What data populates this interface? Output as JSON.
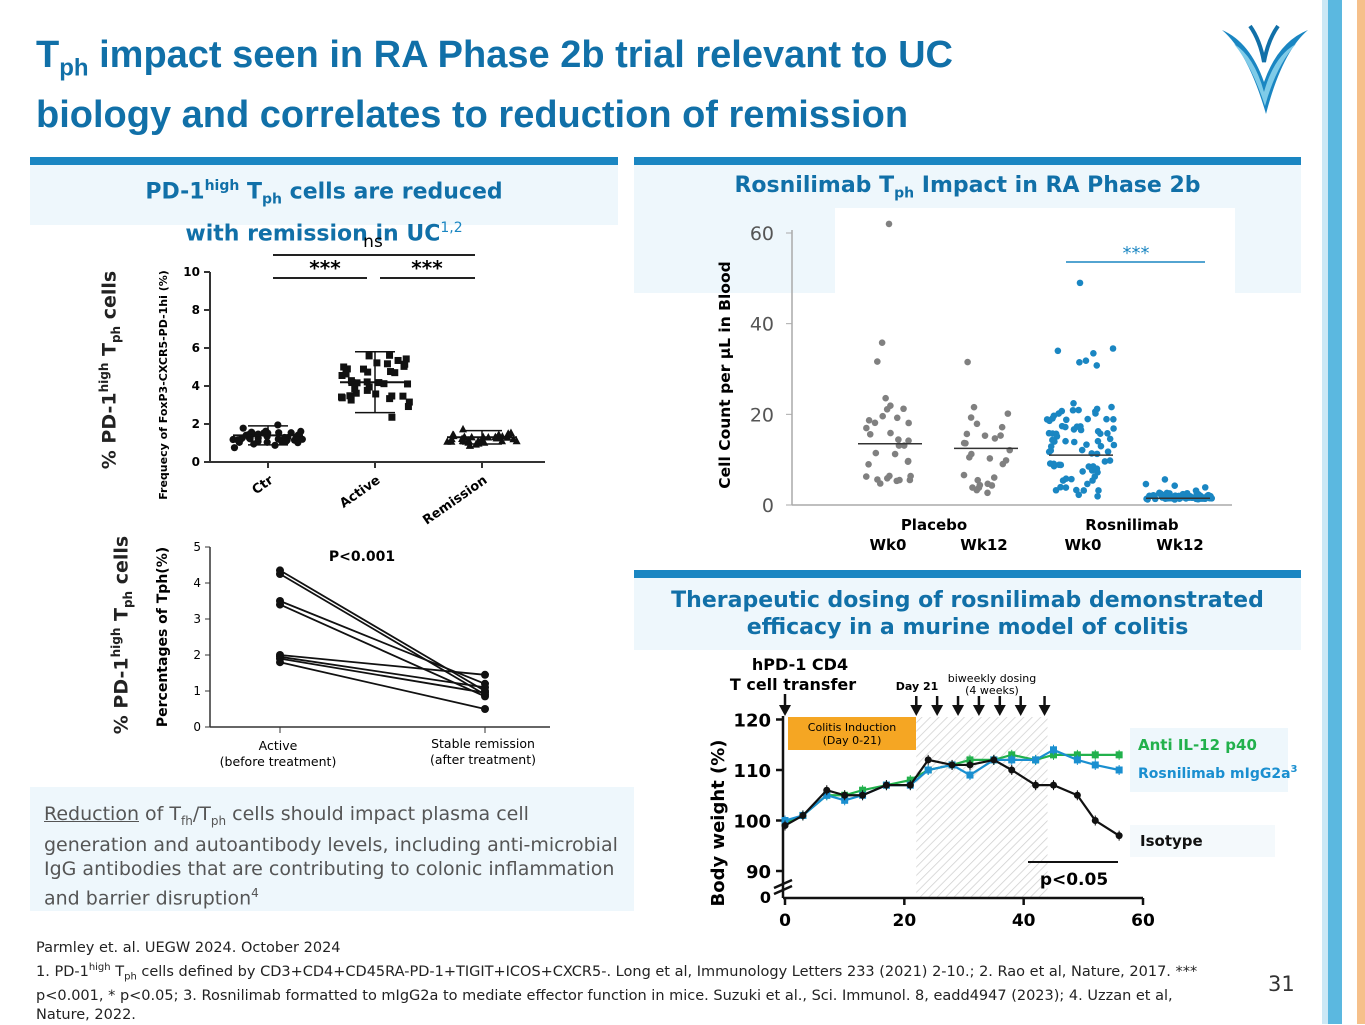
{
  "title": {
    "tph_T": "T",
    "tph_sub": "ph",
    "line1_rest": " impact seen in RA Phase 2b trial relevant to UC",
    "line2": "biology and correlates to reduction of remission"
  },
  "left_panel": {
    "title_line1_a": "PD-1",
    "title_line1_sup": "high",
    "title_line1_b": " T",
    "title_line1_sub": "ph",
    "title_line1_c": " cells are reduced",
    "title_line2": "with remission in UC",
    "title_line2_sup": "1,2",
    "ylabel_a": "% PD-1",
    "ylabel_sup": "high",
    "ylabel_b": " T",
    "ylabel_sub": "ph",
    "ylabel_c": " cells",
    "note_reduction": "Reduction",
    "note_text1": " of T",
    "note_fh": "fh",
    "note_slash": "/T",
    "note_ph": "ph",
    "note_text2": " cells should impact plasma cell generation and autoantibody levels, including anti-microbial IgG antibodies that are contributing to colonic inflammation and barrier disruption",
    "note_sup": "4"
  },
  "right_top": {
    "title_a": "Rosnilimab T",
    "title_sub": "ph",
    "title_b": " Impact in RA Phase 2b"
  },
  "right_bottom": {
    "title_line1": "Therapeutic dosing of rosnilimab demonstrated",
    "title_line2": "efficacy in a murine model of colitis"
  },
  "chart_data": [
    {
      "type": "scatter",
      "ylabel": "Frequecy of FoxP3-CXCR5-PD-1hi (%)",
      "categories": [
        "Ctr",
        "Active",
        "Remission"
      ],
      "ylim": [
        0,
        10
      ],
      "yticks": [
        "0",
        "2",
        "4",
        "6",
        "8",
        "10"
      ],
      "means": [
        1.4,
        4.2,
        1.3
      ],
      "sd": [
        0.5,
        1.6,
        0.35
      ],
      "annotations": [
        "***",
        "***",
        "ns"
      ]
    },
    {
      "type": "line",
      "ylabel": "Percentages of Tph(%)",
      "categories": [
        "Active\n(before treatment)",
        "Stable remission\n(after treatment)"
      ],
      "cat1_line1": "Active",
      "cat1_line2": "(before treatment)",
      "cat2_line1": "Stable remission",
      "cat2_line2": "(after treatment)",
      "ylim": [
        0,
        5
      ],
      "yticks": [
        "0",
        "1",
        "2",
        "3",
        "4",
        "5"
      ],
      "pairs": [
        [
          4.35,
          1.0
        ],
        [
          4.25,
          0.9
        ],
        [
          3.5,
          1.2
        ],
        [
          3.4,
          0.85
        ],
        [
          2.0,
          1.45
        ],
        [
          1.95,
          1.1
        ],
        [
          1.9,
          0.95
        ],
        [
          1.8,
          0.5
        ]
      ],
      "annotation": "P<0.001"
    },
    {
      "type": "scatter",
      "ylabel": "Cell Count per µL in Blood",
      "yticks": [
        "0",
        "20",
        "40",
        "60"
      ],
      "ylim": [
        0,
        62
      ],
      "groups": [
        "Placebo",
        "Rosnilimab"
      ],
      "timepoints": [
        "Wk0",
        "Wk12",
        "Wk0",
        "Wk12"
      ],
      "medians": [
        13.5,
        12.5,
        11,
        1.5
      ],
      "annotation": "***"
    },
    {
      "type": "line",
      "ylabel": "Body weight (%)",
      "xticks": [
        "0",
        "20",
        "40",
        "60"
      ],
      "yticks": [
        "90",
        "100",
        "110",
        "120"
      ],
      "y_zero_label": "0",
      "xlim": [
        0,
        60
      ],
      "ylim": [
        88,
        122
      ],
      "transfer_label_1": "hPD-1 CD4",
      "transfer_label_2": "T cell transfer",
      "day21_label": "Day 21",
      "dosing_label_1": "biweekly dosing",
      "dosing_label_2": "(4 weeks)",
      "colitis_label_1": "Colitis Induction",
      "colitis_label_2": "(Day 0-21)",
      "pvalue": "p<0.05",
      "series": [
        {
          "name": "Anti IL-12 p40",
          "color": "#22b14c",
          "x": [
            0,
            3,
            7,
            10,
            13,
            17,
            21,
            24,
            28,
            31,
            35,
            38,
            42,
            45,
            49,
            52,
            56
          ],
          "y": [
            99.5,
            101,
            105,
            105,
            106,
            107,
            108,
            110,
            111,
            112,
            112,
            113,
            112,
            113,
            113,
            113,
            113
          ]
        },
        {
          "name": "Rosnilimab mIgG2a",
          "name_sup": "3",
          "color": "#1a8fd0",
          "x": [
            0,
            3,
            7,
            10,
            13,
            17,
            21,
            24,
            28,
            31,
            35,
            38,
            42,
            45,
            49,
            52,
            56
          ],
          "y": [
            100,
            101,
            105,
            104,
            105,
            107,
            107,
            110,
            111,
            109,
            112,
            112,
            112,
            114,
            112,
            111,
            110
          ]
        },
        {
          "name": "Isotype",
          "color": "#111111",
          "x": [
            0,
            3,
            7,
            10,
            13,
            17,
            21,
            24,
            28,
            31,
            35,
            38,
            42,
            45,
            49,
            52,
            56
          ],
          "y": [
            99,
            101,
            106,
            105,
            105,
            107,
            107,
            112,
            111,
            111,
            112,
            110,
            107,
            107,
            105,
            100,
            97
          ]
        }
      ]
    }
  ],
  "footer": {
    "line1": "Parmley et. al. UEGW 2024. October 2024",
    "ref_a": "1. PD-1",
    "ref_sup": "high",
    "ref_b": " T",
    "ref_sub": "ph",
    "ref_c": " cells defined by CD3+CD4+CD45RA-PD-1+TIGIT+ICOS+CXCR5-. Long et al, Immunology Letters 233 (2021) 2-10.; 2. Rao et al, Nature, 2017. *** p<0.001, * p<0.05; 3. Rosnilimab formatted to mIgG2a to mediate effector function in mice. Suzuki et al., Sci. Immunol. 8, eadd4947 (2023); 4. Uzzan et al, Nature, 2022.",
    "page_number": "31"
  },
  "colors": {
    "brand": "#1170a8",
    "band": "#1a86c2",
    "panel_bg": "#eef7fc",
    "green": "#22b14c",
    "blue": "#1a8fd0",
    "orange_box": "#f5a623"
  }
}
